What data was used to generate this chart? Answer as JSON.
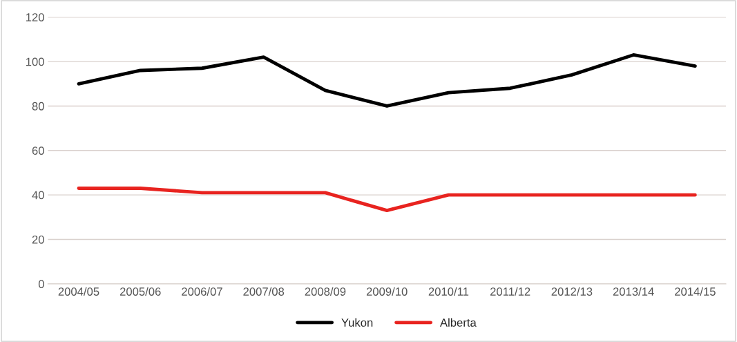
{
  "chart_data": {
    "type": "line",
    "categories": [
      "2004/05",
      "2005/06",
      "2006/07",
      "2007/08",
      "2008/09",
      "2009/10",
      "2010/11",
      "2011/12",
      "2012/13",
      "2013/14",
      "2014/15"
    ],
    "series": [
      {
        "name": "Yukon",
        "color": "#000000",
        "values": [
          90,
          96,
          97,
          102,
          87,
          80,
          86,
          88,
          94,
          103,
          98
        ]
      },
      {
        "name": "Alberta",
        "color": "#e8231f",
        "values": [
          43,
          43,
          41,
          41,
          41,
          33,
          40,
          40,
          40,
          40,
          40
        ]
      }
    ],
    "ylim": [
      0,
      120
    ],
    "yticks": [
      0,
      20,
      40,
      60,
      80,
      100,
      120
    ],
    "grid": "y",
    "legend": "bottom",
    "marker": "none",
    "line_style": "solid"
  }
}
